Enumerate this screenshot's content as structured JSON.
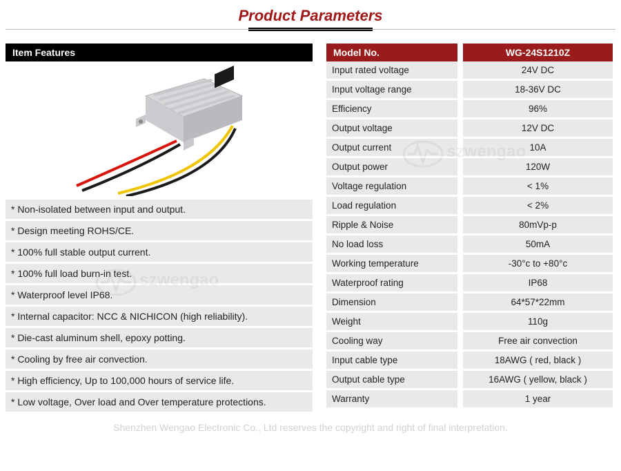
{
  "title": "Product Parameters",
  "features_header": "Item Features",
  "features": [
    "* Non-isolated between input and output.",
    "* Design meeting ROHS/CE.",
    "* 100% full stable output current.",
    "* 100% full load burn-in test.",
    "* Waterproof level IP68.",
    "* Internal capacitor: NCC & NICHICON (high reliability).",
    "* Die-cast aluminum shell, epoxy potting.",
    "* Cooling by free air convection.",
    "* High efficiency, Up to 100,000 hours of service life.",
    "* Low voltage, Over load and Over temperature protections."
  ],
  "spec_header_left": "Model No.",
  "spec_header_right": "WG-24S1210Z",
  "specs": [
    {
      "label": "Input rated voltage",
      "value": "24V DC"
    },
    {
      "label": "Input voltage range",
      "value": "18-36V DC"
    },
    {
      "label": "Efficiency",
      "value": "96%"
    },
    {
      "label": "Output voltage",
      "value": "12V DC"
    },
    {
      "label": "Output current",
      "value": "10A"
    },
    {
      "label": "Output power",
      "value": "120W"
    },
    {
      "label": "Voltage regulation",
      "value": "< 1%"
    },
    {
      "label": "Load regulation",
      "value": "< 2%"
    },
    {
      "label": "Ripple & Noise",
      "value": "80mVp-p"
    },
    {
      "label": "No load loss",
      "value": "50mA"
    },
    {
      "label": "Working temperature",
      "value": "-30°c to +80°c"
    },
    {
      "label": "Waterproof rating",
      "value": "IP68"
    },
    {
      "label": "Dimension",
      "value": "64*57*22mm"
    },
    {
      "label": "Weight",
      "value": "110g"
    },
    {
      "label": "Cooling way",
      "value": "Free air convection"
    },
    {
      "label": "Input cable type",
      "value": "18AWG ( red, black )"
    },
    {
      "label": "Output cable type",
      "value": "16AWG ( yellow, black )"
    },
    {
      "label": "Warranty",
      "value": "1 year"
    }
  ],
  "footer": "Shenzhen Wengao Electronic Co., Ltd reserves the copyright and right of final interpretation.",
  "watermark": "szwengao",
  "product_image": {
    "body_color": "#d6d8da",
    "body_shadow": "#b8babd",
    "wire_colors": {
      "red": "#d8140a",
      "yellow": "#f0c400",
      "black": "#1a1a1a"
    },
    "connector_color": "#1a1a1a"
  },
  "colors": {
    "title": "#a01818",
    "header_black": "#000000",
    "header_maroon": "#9a1b1b",
    "row_bg": "#e9e9e9",
    "text": "#222222",
    "footer": "#d0d0d0"
  }
}
